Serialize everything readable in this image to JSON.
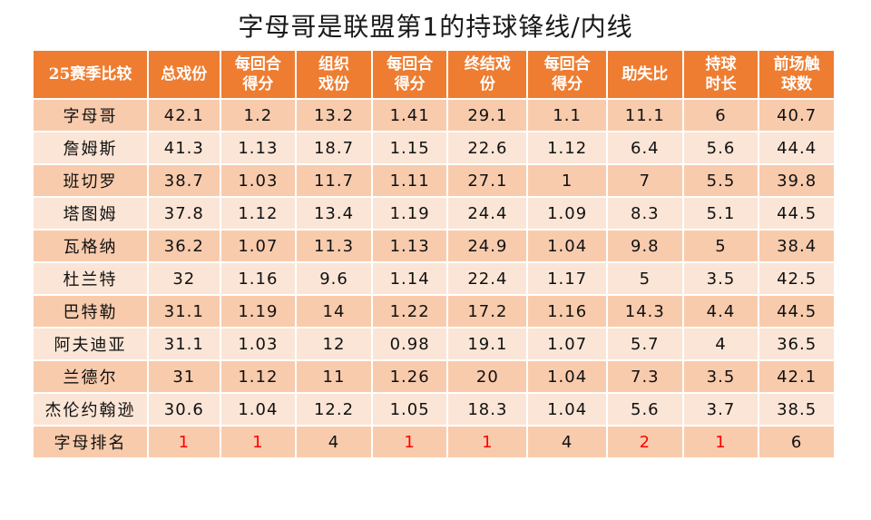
{
  "chart_data": {
    "type": "table",
    "title": "字母哥是联盟第1的持球锋线/内线",
    "columns": [
      "25赛季比较",
      "总戏份",
      "每回合得分",
      "组织戏份",
      "每回合得分",
      "终结戏份",
      "每回合得分",
      "助失比",
      "持球时长",
      "前场触球数"
    ],
    "header_lines": [
      [
        "25赛季比较"
      ],
      [
        "总戏份"
      ],
      [
        "每回合",
        "得分"
      ],
      [
        "组织",
        "戏份"
      ],
      [
        "每回合",
        "得分"
      ],
      [
        "终结戏",
        "份"
      ],
      [
        "每回合",
        "得分"
      ],
      [
        "助失比"
      ],
      [
        "持球",
        "时长"
      ],
      [
        "前场触",
        "球数"
      ]
    ],
    "rows": [
      {
        "name": "字母哥",
        "values": [
          "42.1",
          "1.2",
          "13.2",
          "1.41",
          "29.1",
          "1.1",
          "11.1",
          "6",
          "40.7"
        ]
      },
      {
        "name": "詹姆斯",
        "values": [
          "41.3",
          "1.13",
          "18.7",
          "1.15",
          "22.6",
          "1.12",
          "6.4",
          "5.6",
          "44.4"
        ]
      },
      {
        "name": "班切罗",
        "values": [
          "38.7",
          "1.03",
          "11.7",
          "1.11",
          "27.1",
          "1",
          "7",
          "5.5",
          "39.8"
        ]
      },
      {
        "name": "塔图姆",
        "values": [
          "37.8",
          "1.12",
          "13.4",
          "1.19",
          "24.4",
          "1.09",
          "8.3",
          "5.1",
          "44.5"
        ]
      },
      {
        "name": "瓦格纳",
        "values": [
          "36.2",
          "1.07",
          "11.3",
          "1.13",
          "24.9",
          "1.04",
          "9.8",
          "5",
          "38.4"
        ]
      },
      {
        "name": "杜兰特",
        "values": [
          "32",
          "1.16",
          "9.6",
          "1.14",
          "22.4",
          "1.17",
          "5",
          "3.5",
          "42.5"
        ]
      },
      {
        "name": "巴特勒",
        "values": [
          "31.1",
          "1.19",
          "14",
          "1.22",
          "17.2",
          "1.16",
          "14.3",
          "4.4",
          "44.5"
        ]
      },
      {
        "name": "阿夫迪亚",
        "values": [
          "31.1",
          "1.03",
          "12",
          "0.98",
          "19.1",
          "1.07",
          "5.7",
          "4",
          "36.5"
        ]
      },
      {
        "name": "兰德尔",
        "values": [
          "31",
          "1.12",
          "11",
          "1.26",
          "20",
          "1.04",
          "7.3",
          "3.5",
          "42.1"
        ]
      },
      {
        "name": "杰伦约翰逊",
        "values": [
          "30.6",
          "1.04",
          "12.2",
          "1.05",
          "18.3",
          "1.04",
          "5.6",
          "3.7",
          "38.5"
        ]
      },
      {
        "name": "字母排名",
        "values": [
          "1",
          "1",
          "4",
          "1",
          "1",
          "4",
          "2",
          "1",
          "6"
        ]
      }
    ],
    "rank_row_index": 10,
    "rank_highlight_color": "#ff0000",
    "colors": {
      "header_bg": "#ee7d31",
      "header_text": "#ffffff",
      "row_odd": "#f8cbad",
      "row_even": "#fbe5d6"
    }
  }
}
